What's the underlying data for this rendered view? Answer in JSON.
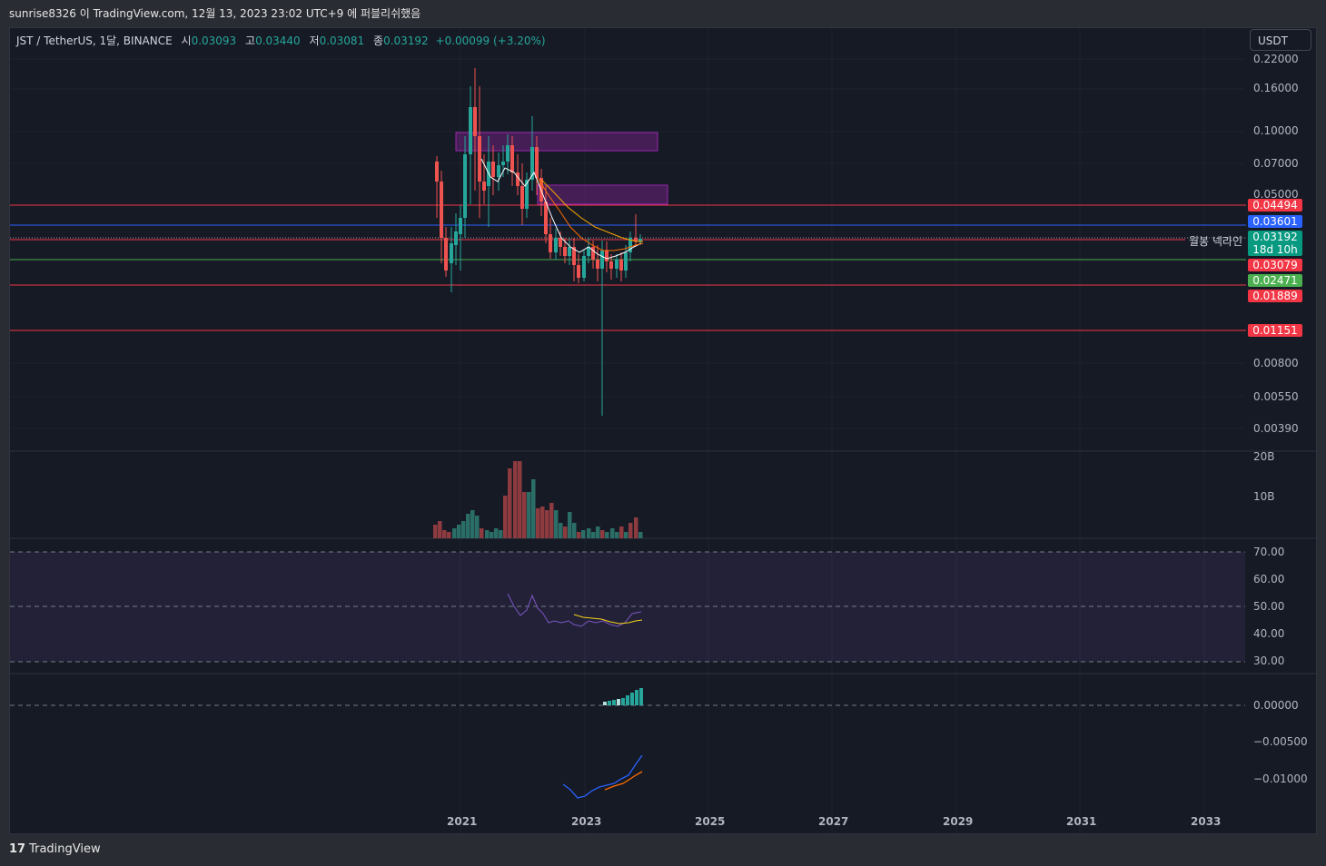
{
  "header": {
    "title": "sunrise8326 이 TradingView.com, 12월 13, 2023 23:02 UTC+9 에 퍼블리쉬했음"
  },
  "legend": {
    "symbol": "JST / TetherUS, 1달, BINANCE",
    "open_label": "시",
    "open": "0.03093",
    "high_label": "고",
    "high": "0.03440",
    "low_label": "저",
    "low": "0.03081",
    "close_label": "종",
    "close": "0.03192",
    "change": "+0.00099 (+3.20%)"
  },
  "currency_button": "USDT",
  "price_axis": [
    "0.22000",
    "0.16000",
    "0.10000",
    "0.07000",
    "0.05000",
    "0.00800",
    "0.00550",
    "0.00390"
  ],
  "price_tags": [
    {
      "label": "0.04494",
      "color": "#f23645"
    },
    {
      "label": "0.03601",
      "color": "#2962ff"
    },
    {
      "label": "0.03192",
      "color": "#089981"
    },
    {
      "label": "18d 10h",
      "color": "#089981"
    },
    {
      "label": "0.03079",
      "color": "#f23645"
    },
    {
      "label": "0.02471",
      "color": "#4caf50"
    },
    {
      "label": "0.01889",
      "color": "#f23645"
    },
    {
      "label": "0.01151",
      "color": "#f23645"
    }
  ],
  "line_label": "월봉 넥라인",
  "volume_axis": [
    "20B",
    "10B"
  ],
  "rsi_axis": [
    "70.00",
    "60.00",
    "50.00",
    "40.00",
    "30.00"
  ],
  "macd_axis": [
    "0.00000",
    "−0.00500",
    "−0.01000"
  ],
  "time_axis": [
    "2021",
    "2023",
    "2025",
    "2027",
    "2029",
    "2031",
    "2033"
  ],
  "footer": {
    "logo": "17",
    "brand": "TradingView"
  }
}
